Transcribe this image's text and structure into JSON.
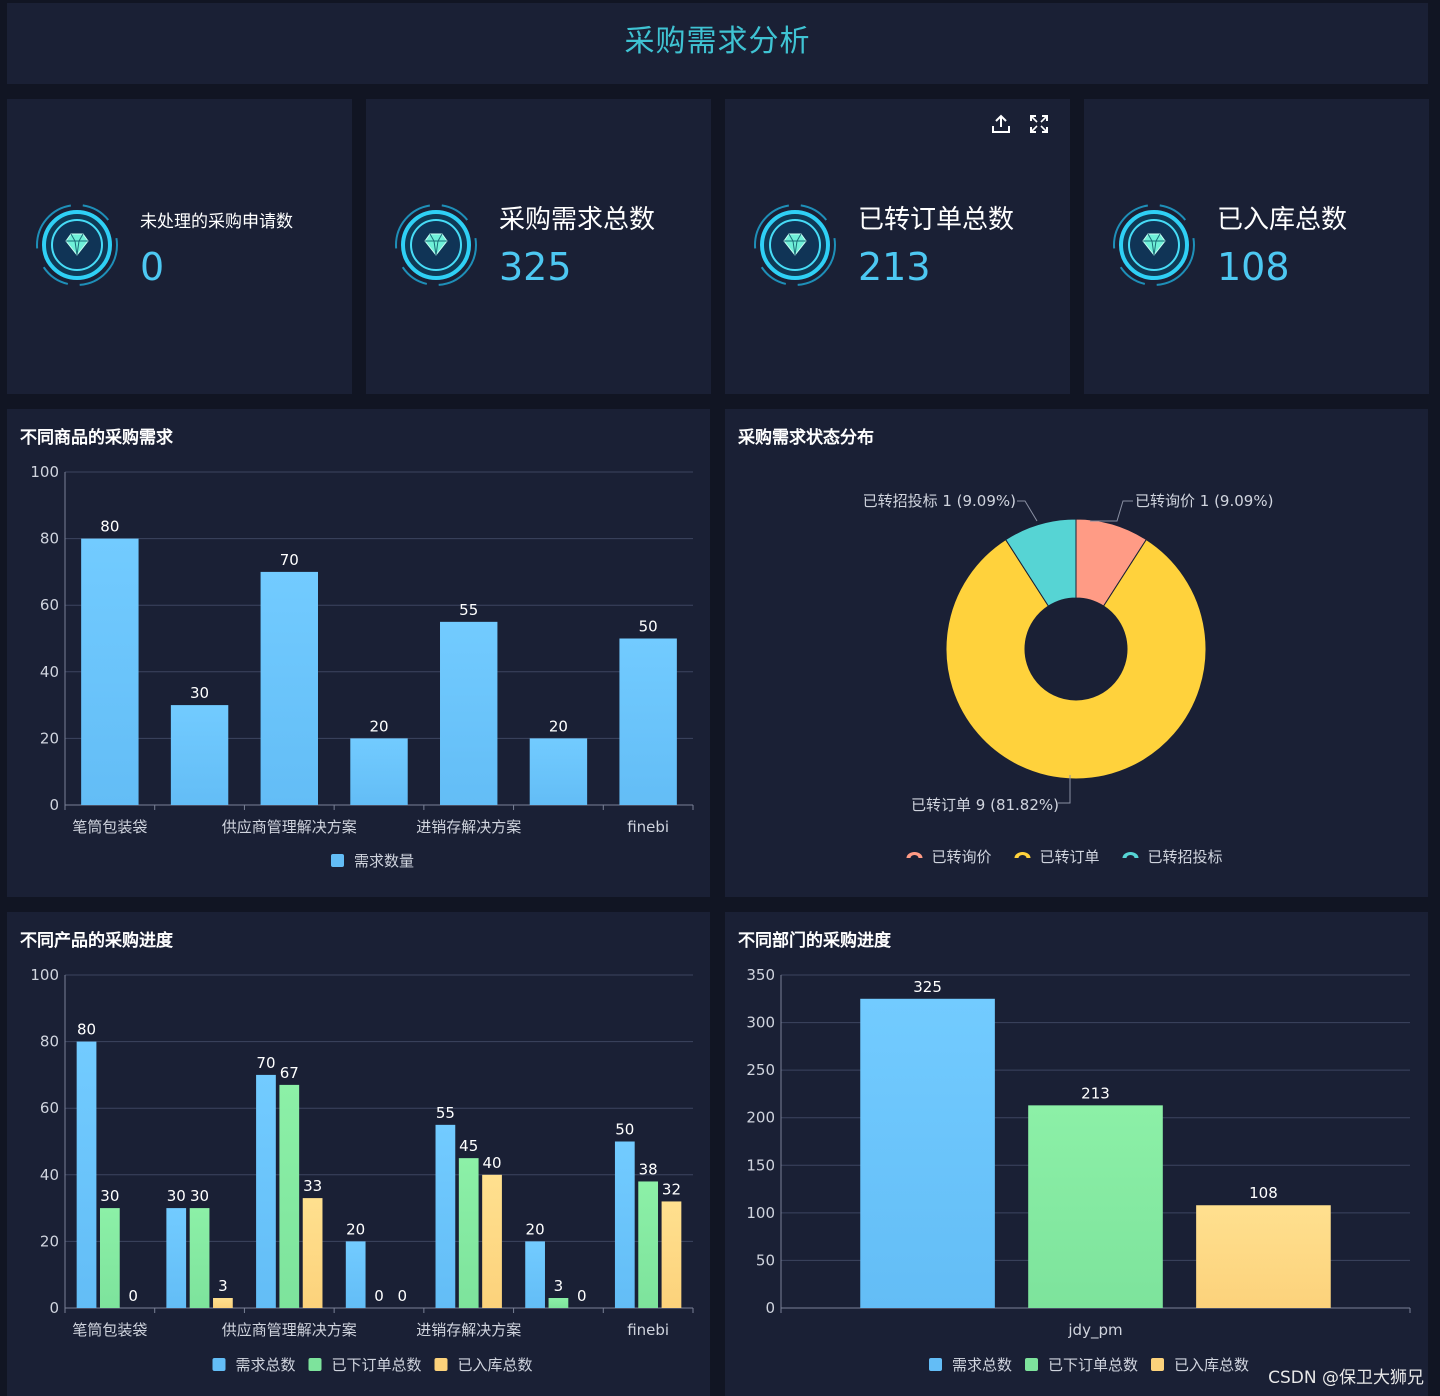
{
  "header": {
    "title": "采购需求分析"
  },
  "kpis": [
    {
      "label": "未处理的采购申请数",
      "value": "0"
    },
    {
      "label": "采购需求总数",
      "value": "325"
    },
    {
      "label": "已转订单总数",
      "value": "213"
    },
    {
      "label": "已入库总数",
      "value": "108"
    }
  ],
  "kpi_tools": {
    "export_icon": "upload-icon",
    "fullscreen_icon": "expand-icon"
  },
  "colors": {
    "blue": "#63bdf6",
    "blue_top": "#72cbff",
    "green": "#7de39c",
    "green_top": "#8cf0a7",
    "orange": "#fcd27b",
    "orange_top": "#ffe08f",
    "salmon": "#ff9b85",
    "yellow": "#ffd23c",
    "cyan": "#56d4d4",
    "grid": "#3c4460",
    "axis_text": "#d0d4de",
    "label_text": "#ffffff"
  },
  "charts": {
    "goods": {
      "title": "不同商品的采购需求",
      "legend": [
        "需求数量"
      ]
    },
    "status": {
      "title": "采购需求状态分布",
      "legend": [
        "已转询价",
        "已转订单",
        "已转招投标"
      ]
    },
    "products": {
      "title": "不同产品的采购进度",
      "legend": [
        "需求总数",
        "已下订单总数",
        "已入库总数"
      ]
    },
    "departments": {
      "title": "不同部门的采购进度",
      "legend": [
        "需求总数",
        "已下订单总数",
        "已入库总数"
      ]
    }
  },
  "chart_data": [
    {
      "id": "goods",
      "type": "bar",
      "title": "不同商品的采购需求",
      "categories": [
        "笔筒包装袋",
        "",
        "供应商管理解决方案",
        "",
        "进销存解决方案",
        "",
        "finebi"
      ],
      "series": [
        {
          "name": "需求数量",
          "values": [
            80,
            30,
            70,
            20,
            55,
            20,
            50
          ]
        }
      ],
      "ylim": [
        0,
        100
      ],
      "yticks": [
        0,
        20,
        40,
        60,
        80,
        100
      ],
      "grid": true,
      "legend": "bottom-center"
    },
    {
      "id": "status",
      "type": "pie",
      "title": "采购需求状态分布",
      "slices": [
        {
          "name": "已转询价",
          "value": 1,
          "label": "已转询价 1 (9.09%)"
        },
        {
          "name": "已转订单",
          "value": 9,
          "label": "已转订单 9 (81.82%)"
        },
        {
          "name": "已转招投标",
          "value": 1,
          "label": "已转招投标 1 (9.09%)"
        }
      ],
      "donut": true,
      "legend": "bottom-center"
    },
    {
      "id": "products",
      "type": "bar",
      "title": "不同产品的采购进度",
      "categories": [
        "笔筒包装袋",
        "",
        "供应商管理解决方案",
        "",
        "进销存解决方案",
        "",
        "finebi"
      ],
      "series": [
        {
          "name": "需求总数",
          "values": [
            80,
            30,
            70,
            20,
            55,
            20,
            50
          ]
        },
        {
          "name": "已下订单总数",
          "values": [
            30,
            30,
            67,
            0,
            45,
            3,
            38
          ]
        },
        {
          "name": "已入库总数",
          "values": [
            0,
            3,
            33,
            0,
            40,
            0,
            32
          ]
        }
      ],
      "ylim": [
        0,
        100
      ],
      "yticks": [
        0,
        20,
        40,
        60,
        80,
        100
      ],
      "grid": true,
      "legend": "bottom-center"
    },
    {
      "id": "departments",
      "type": "bar",
      "title": "不同部门的采购进度",
      "categories": [
        "jdy_pm"
      ],
      "series": [
        {
          "name": "需求总数",
          "values": [
            325
          ]
        },
        {
          "name": "已下订单总数",
          "values": [
            213
          ]
        },
        {
          "name": "已入库总数",
          "values": [
            108
          ]
        }
      ],
      "ylim": [
        0,
        350
      ],
      "yticks": [
        0,
        50,
        100,
        150,
        200,
        250,
        300,
        350
      ],
      "grid": true,
      "legend": "bottom-center"
    }
  ],
  "watermark": "CSDN @保卫大狮兄"
}
